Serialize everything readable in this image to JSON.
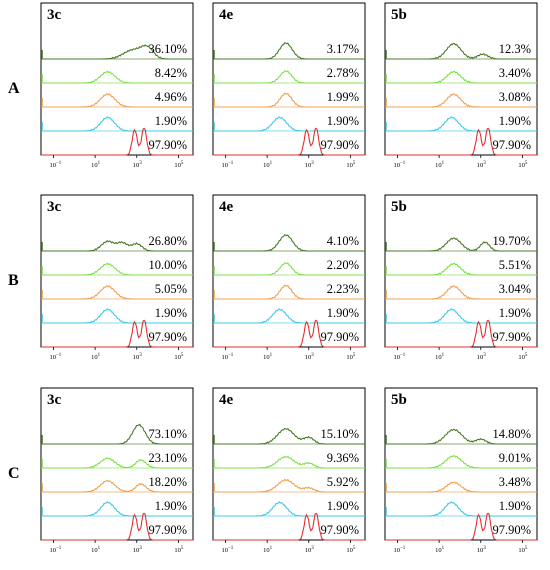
{
  "figure": {
    "rows": [
      {
        "label": "A",
        "panels": [
          {
            "title": "3c",
            "percentages": [
              "36.10%",
              "8.42%",
              "4.96%",
              "1.90%",
              "97.90%"
            ],
            "peak_profile": "3c-A"
          },
          {
            "title": "4e",
            "percentages": [
              "3.17%",
              "2.78%",
              "1.99%",
              "1.90%",
              "97.90%"
            ],
            "peak_profile": "4e-A"
          },
          {
            "title": "5b",
            "percentages": [
              "12.3%",
              "3.40%",
              "3.08%",
              "1.90%",
              "97.90%"
            ],
            "peak_profile": "5b-A"
          }
        ]
      },
      {
        "label": "B",
        "panels": [
          {
            "title": "3c",
            "percentages": [
              "26.80%",
              "10.00%",
              "5.05%",
              "1.90%",
              "97.90%"
            ],
            "peak_profile": "3c-B"
          },
          {
            "title": "4e",
            "percentages": [
              "4.10%",
              "2.20%",
              "2.23%",
              "1.90%",
              "97.90%"
            ],
            "peak_profile": "4e-B"
          },
          {
            "title": "5b",
            "percentages": [
              "19.70%",
              "5.51%",
              "3.04%",
              "1.90%",
              "97.90%"
            ],
            "peak_profile": "5b-B"
          }
        ]
      },
      {
        "label": "C",
        "panels": [
          {
            "title": "3c",
            "percentages": [
              "73.10%",
              "23.10%",
              "18.20%",
              "1.90%",
              "97.90%"
            ],
            "peak_profile": "3c-C"
          },
          {
            "title": "4e",
            "percentages": [
              "15.10%",
              "9.36%",
              "5.92%",
              "1.90%",
              "97.90%"
            ],
            "peak_profile": "4e-C"
          },
          {
            "title": "5b",
            "percentages": [
              "14.80%",
              "9.01%",
              "3.48%",
              "1.90%",
              "97.90%"
            ],
            "peak_profile": "5b-C"
          }
        ]
      }
    ],
    "x_ticks": [
      "10^-1",
      "10^1",
      "10^3",
      "10^5"
    ],
    "x_ticks_display": [
      {
        "base": "10",
        "exp": "−1"
      },
      {
        "base": "10",
        "exp": "1"
      },
      {
        "base": "10",
        "exp": "3"
      },
      {
        "base": "10",
        "exp": "5"
      }
    ],
    "trace_colors": [
      "#4a7a2a",
      "#7ee04a",
      "#f0a050",
      "#3ec8e8",
      "#e03030"
    ],
    "x_log_range": [
      -1.6,
      5.7
    ]
  },
  "chart_data": {
    "type": "area",
    "description_of_axes": "log-scale x axis, stacked histogram traces per panel",
    "xlabel": "",
    "ylabel": "",
    "x_scale": "log",
    "x_ticks": [
      0.1,
      10,
      1000,
      100000
    ],
    "grid": false,
    "legend": "none",
    "panels": [
      {
        "row": "A",
        "title": "3c",
        "series_percent": [
          36.1,
          8.42,
          4.96,
          1.9,
          97.9
        ]
      },
      {
        "row": "A",
        "title": "4e",
        "series_percent": [
          3.17,
          2.78,
          1.99,
          1.9,
          97.9
        ]
      },
      {
        "row": "A",
        "title": "5b",
        "series_percent": [
          12.3,
          3.4,
          3.08,
          1.9,
          97.9
        ]
      },
      {
        "row": "B",
        "title": "3c",
        "series_percent": [
          26.8,
          10.0,
          5.05,
          1.9,
          97.9
        ]
      },
      {
        "row": "B",
        "title": "4e",
        "series_percent": [
          4.1,
          2.2,
          2.23,
          1.9,
          97.9
        ]
      },
      {
        "row": "B",
        "title": "5b",
        "series_percent": [
          19.7,
          5.51,
          3.04,
          1.9,
          97.9
        ]
      },
      {
        "row": "C",
        "title": "3c",
        "series_percent": [
          73.1,
          23.1,
          18.2,
          1.9,
          97.9
        ]
      },
      {
        "row": "C",
        "title": "4e",
        "series_percent": [
          15.1,
          9.36,
          5.92,
          1.9,
          97.9
        ]
      },
      {
        "row": "C",
        "title": "5b",
        "series_percent": [
          14.8,
          9.01,
          3.48,
          1.9,
          97.9
        ]
      }
    ]
  }
}
